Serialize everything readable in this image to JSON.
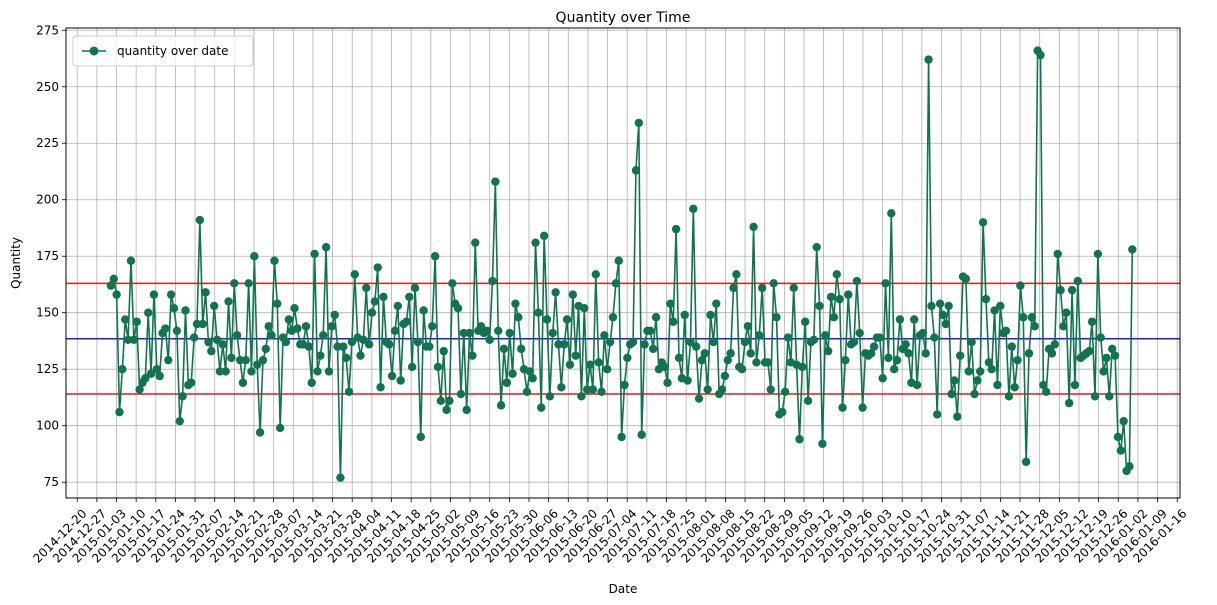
{
  "chart_data": {
    "type": "line",
    "title": "Quantity over Time",
    "xlabel": "Date",
    "ylabel": "Quantity",
    "xlim": [
      "2014-12-16",
      "2016-01-17"
    ],
    "ylim": [
      68,
      276
    ],
    "grid": true,
    "legend_position": "top-left",
    "x_ticks": [
      "2014-12-20",
      "2014-12-27",
      "2015-01-03",
      "2015-01-10",
      "2015-01-17",
      "2015-01-24",
      "2015-01-31",
      "2015-02-07",
      "2015-02-14",
      "2015-02-21",
      "2015-02-28",
      "2015-03-07",
      "2015-03-14",
      "2015-03-21",
      "2015-03-28",
      "2015-04-04",
      "2015-04-11",
      "2015-04-18",
      "2015-04-25",
      "2015-05-02",
      "2015-05-09",
      "2015-05-16",
      "2015-05-23",
      "2015-05-30",
      "2015-06-06",
      "2015-06-13",
      "2015-06-20",
      "2015-06-27",
      "2015-07-04",
      "2015-07-11",
      "2015-07-18",
      "2015-07-25",
      "2015-08-01",
      "2015-08-08",
      "2015-08-15",
      "2015-08-22",
      "2015-08-29",
      "2015-09-05",
      "2015-09-12",
      "2015-09-19",
      "2015-09-26",
      "2015-10-03",
      "2015-10-10",
      "2015-10-17",
      "2015-10-24",
      "2015-10-31",
      "2015-11-07",
      "2015-11-14",
      "2015-11-21",
      "2015-11-28",
      "2015-12-05",
      "2015-12-12",
      "2015-12-19",
      "2015-12-26",
      "2016-01-02",
      "2016-01-09",
      "2016-01-16"
    ],
    "y_ticks": [
      75,
      100,
      125,
      150,
      175,
      200,
      225,
      250,
      275
    ],
    "horizontal_lines": [
      {
        "value": 163,
        "color": "#e31a1c"
      },
      {
        "value": 138.5,
        "color": "#1f1fd6"
      },
      {
        "value": 114,
        "color": "#e31a1c"
      }
    ],
    "series": [
      {
        "name": "quantity over date",
        "color": "#127350",
        "x_start": "2015-01-01",
        "x_end": "2015-12-31",
        "values": [
          162,
          165,
          158,
          106,
          125,
          147,
          138,
          173,
          138,
          146,
          116,
          119,
          121,
          150,
          123,
          158,
          125,
          122,
          141,
          143,
          129,
          158,
          152,
          142,
          102,
          113,
          151,
          118,
          119,
          139,
          145,
          191,
          145,
          159,
          137,
          133,
          153,
          138,
          124,
          136,
          124,
          155,
          130,
          163,
          140,
          129,
          119,
          129,
          163,
          124,
          175,
          127,
          97,
          129,
          134,
          144,
          140,
          173,
          154,
          99,
          139,
          137,
          147,
          142,
          152,
          143,
          136,
          136,
          144,
          135,
          119,
          176,
          124,
          131,
          140,
          179,
          124,
          144,
          149,
          135,
          77,
          135,
          130,
          115,
          137,
          167,
          139,
          131,
          138,
          161,
          136,
          150,
          155,
          170,
          117,
          157,
          137,
          136,
          122,
          142,
          153,
          120,
          145,
          146,
          157,
          126,
          161,
          137,
          95,
          151,
          135,
          135,
          144,
          175,
          126,
          111,
          133,
          107,
          111,
          163,
          154,
          152,
          114,
          141,
          107,
          141,
          131,
          181,
          142,
          144,
          141,
          142,
          138,
          164,
          208,
          142,
          109,
          134,
          119,
          141,
          123,
          154,
          148,
          134,
          125,
          115,
          124,
          121,
          181,
          150,
          108,
          184,
          147,
          113,
          141,
          159,
          136,
          117,
          136,
          147,
          127,
          158,
          131,
          153,
          113,
          152,
          116,
          127,
          116,
          167,
          128,
          115,
          140,
          125,
          137,
          148,
          163,
          173,
          95,
          118,
          130,
          136,
          137,
          213,
          234,
          96,
          136,
          142,
          142,
          134,
          148,
          125,
          128,
          126,
          119,
          154,
          146,
          187,
          130,
          121,
          149,
          120,
          137,
          196,
          135,
          112,
          129,
          132,
          116,
          149,
          137,
          154,
          114,
          116,
          122,
          129,
          132,
          161,
          167,
          126,
          125,
          137,
          144,
          132,
          188,
          128,
          140,
          161,
          128,
          128,
          116,
          163,
          148,
          105,
          106,
          115,
          139,
          128,
          161,
          127,
          94,
          126,
          146,
          111,
          137,
          138,
          179,
          153,
          92,
          140,
          133,
          157,
          148,
          167,
          156,
          108,
          129,
          158,
          136,
          137,
          164,
          141,
          108,
          132,
          131,
          132,
          135,
          139,
          139,
          121,
          163,
          130,
          194,
          125,
          129,
          147,
          134,
          136,
          132,
          119,
          147,
          118,
          140,
          141,
          132,
          262,
          153,
          139,
          105,
          154,
          149,
          145,
          153,
          114,
          120,
          104,
          131,
          166,
          165,
          124,
          137,
          114,
          120,
          124,
          190,
          156,
          128,
          125,
          151,
          118,
          153,
          141,
          142,
          113,
          135,
          117,
          129,
          162,
          148,
          84,
          132,
          148,
          144,
          266,
          264,
          118,
          115,
          134,
          132,
          136,
          176,
          160,
          144,
          150,
          110,
          160,
          118,
          164,
          130,
          131,
          132,
          133,
          146,
          113,
          176,
          139,
          124,
          130,
          113,
          134,
          131,
          95,
          89,
          102,
          80,
          82,
          178
        ]
      }
    ]
  }
}
